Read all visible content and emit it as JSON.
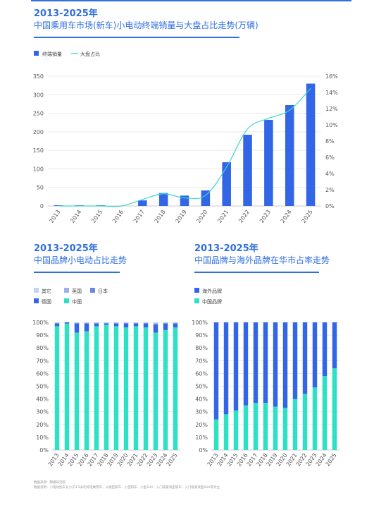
{
  "chart_data": [
    {
      "id": "chart1",
      "type": "bar+line",
      "title_year": "2013-2025年",
      "title": "中国乘用车市场(新车)小电动终端销量与大盘占比走势(万辆)",
      "categories": [
        "2013",
        "2014",
        "2015",
        "2016",
        "2017",
        "2018",
        "2019",
        "2020",
        "2021",
        "2022",
        "2023",
        "2024",
        "2025"
      ],
      "series": [
        {
          "name": "终端销量",
          "kind": "bar",
          "axis": "left",
          "color": "#3366e6",
          "values": [
            2,
            2,
            2,
            0,
            15,
            35,
            28,
            42,
            118,
            192,
            232,
            272,
            330
          ]
        },
        {
          "name": "大盘占比",
          "kind": "line",
          "axis": "right",
          "color": "#3cd6cc",
          "values": [
            0.0,
            0.0,
            0.0,
            0.0,
            0.8,
            1.5,
            1.0,
            1.3,
            4.8,
            9.5,
            10.8,
            11.8,
            14.5
          ]
        }
      ],
      "ylim_left": [
        0,
        350
      ],
      "yticks_left": [
        "0",
        "50",
        "100",
        "150",
        "200",
        "250",
        "300",
        "350"
      ],
      "ylim_right": [
        0,
        16
      ],
      "yticks_right": [
        "0%",
        "2%",
        "4%",
        "6%",
        "8%",
        "10%",
        "12%",
        "14%",
        "16%"
      ],
      "legend_position": "top-left",
      "grid": true
    },
    {
      "id": "chart2",
      "type": "stacked-bar",
      "title_year": "2013-2025年",
      "title": "中国品牌小电动占比走势",
      "categories": [
        "2013",
        "2014",
        "2015",
        "2016",
        "2017",
        "2018",
        "2019",
        "2020",
        "2021",
        "2022",
        "2023",
        "2024",
        "2025"
      ],
      "series": [
        {
          "name": "中国",
          "color": "#2ee0c4",
          "values": [
            97,
            99,
            92,
            93,
            97,
            98,
            97,
            96,
            97,
            96,
            92,
            94,
            96
          ]
        },
        {
          "name": "德国",
          "color": "#3366e6",
          "values": [
            2,
            1,
            7,
            6,
            2,
            1,
            2,
            3,
            2,
            3,
            6,
            5,
            3
          ]
        },
        {
          "name": "日本",
          "color": "#6688e8",
          "values": [
            0.5,
            0,
            0.5,
            0.5,
            0.5,
            0.5,
            0.5,
            0.5,
            0.5,
            0.5,
            1,
            0.5,
            0.5
          ]
        },
        {
          "name": "英国",
          "color": "#99b3f0",
          "values": [
            0.3,
            0,
            0.3,
            0.3,
            0.3,
            0.3,
            0.3,
            0.3,
            0.3,
            0.3,
            0.5,
            0.3,
            0.3
          ]
        },
        {
          "name": "其它",
          "color": "#c5d4f5",
          "values": [
            0.2,
            0,
            0.2,
            0.2,
            0.2,
            0.2,
            0.2,
            0.2,
            0.2,
            0.2,
            0.5,
            0.2,
            0.2
          ]
        }
      ],
      "legend_order": [
        "其它",
        "英国",
        "日本",
        "德国",
        "中国"
      ],
      "ylim": [
        0,
        100
      ],
      "yticks": [
        "0%",
        "10%",
        "20%",
        "30%",
        "40%",
        "50%",
        "60%",
        "70%",
        "80%",
        "90%",
        "100%"
      ],
      "legend_position": "top-left"
    },
    {
      "id": "chart3",
      "type": "stacked-bar",
      "title_year": "2013-2025年",
      "title": "中国品牌与海外品牌在华市占率走势",
      "categories": [
        "2013",
        "2014",
        "2015",
        "2016",
        "2017",
        "2018",
        "2019",
        "2020",
        "2021",
        "2022",
        "2023",
        "2024",
        "2025"
      ],
      "series": [
        {
          "name": "中国品牌",
          "color": "#2ee0c4",
          "values": [
            24,
            28,
            31,
            35,
            37,
            37,
            34,
            33,
            40,
            44,
            49,
            58,
            64
          ]
        },
        {
          "name": "海外品牌",
          "color": "#3366e6",
          "values": [
            76,
            72,
            69,
            65,
            63,
            63,
            66,
            67,
            60,
            56,
            51,
            42,
            36
          ]
        }
      ],
      "legend_order": [
        "海外品牌",
        "中国品牌"
      ],
      "ylim": [
        0,
        100
      ],
      "yticks": [
        "0%",
        "10%",
        "20%",
        "30%",
        "40%",
        "50%",
        "60%",
        "70%",
        "80%",
        "90%",
        "100%"
      ],
      "legend_position": "top-left"
    }
  ],
  "footer": {
    "source": "数据来源：腾睿研究院",
    "note": "数据说明：小电动指车长小于4.5米的纯电乘用车，以微型轿车、小型轿车、小型SUV、入门级紧凑型轿车、入门级紧凑型SUV等为主"
  }
}
